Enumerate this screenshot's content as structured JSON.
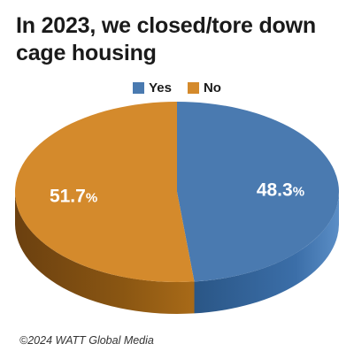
{
  "title": "In 2023, we closed/tore down cage housing",
  "credit": "©2024 WATT Global Media",
  "chart_data": {
    "type": "pie",
    "title": "In 2023, we closed/tore down cage housing",
    "categories": [
      "Yes",
      "No"
    ],
    "values": [
      48.3,
      51.7
    ],
    "labels": [
      "48.3",
      "51.7"
    ],
    "unit": "%",
    "colors": [
      "#4a7ab0",
      "#d48a2c"
    ],
    "side_colors": [
      "#2f5f95",
      "#8a5612"
    ],
    "legend_placement": "top-center",
    "style": "3d"
  }
}
